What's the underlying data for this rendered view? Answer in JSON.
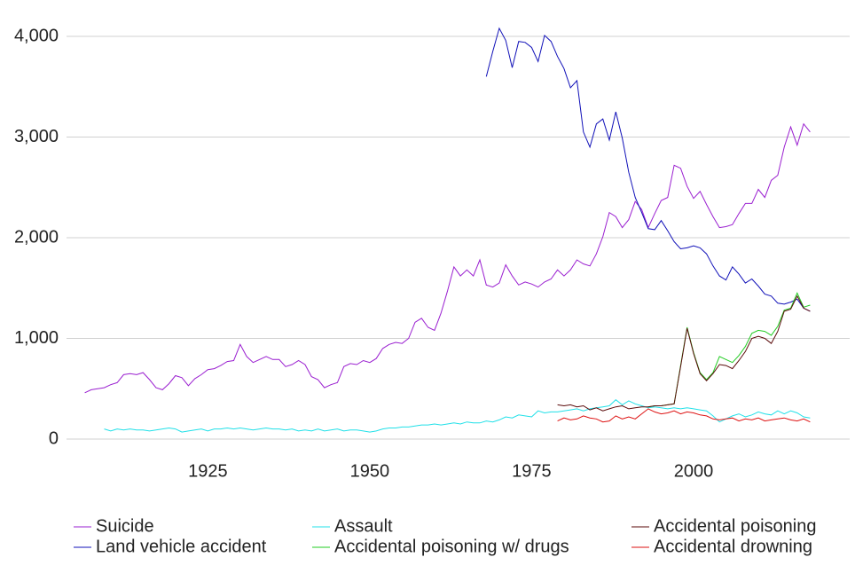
{
  "chart_data": {
    "type": "line",
    "x": [
      1906,
      1907,
      1908,
      1909,
      1910,
      1911,
      1912,
      1913,
      1914,
      1915,
      1916,
      1917,
      1918,
      1919,
      1920,
      1921,
      1922,
      1923,
      1924,
      1925,
      1926,
      1927,
      1928,
      1929,
      1930,
      1931,
      1932,
      1933,
      1934,
      1935,
      1936,
      1937,
      1938,
      1939,
      1940,
      1941,
      1942,
      1943,
      1944,
      1945,
      1946,
      1947,
      1948,
      1949,
      1950,
      1951,
      1952,
      1953,
      1954,
      1955,
      1956,
      1957,
      1958,
      1959,
      1960,
      1961,
      1962,
      1963,
      1964,
      1965,
      1966,
      1967,
      1968,
      1969,
      1970,
      1971,
      1972,
      1973,
      1974,
      1975,
      1976,
      1977,
      1978,
      1979,
      1980,
      1981,
      1982,
      1983,
      1984,
      1985,
      1986,
      1987,
      1988,
      1989,
      1990,
      1991,
      1992,
      1993,
      1994,
      1995,
      1996,
      1997,
      1998,
      1999,
      2000,
      2001,
      2002,
      2003,
      2004,
      2005,
      2006,
      2007,
      2008,
      2009,
      2010,
      2011,
      2012,
      2013,
      2014,
      2015,
      2016,
      2017,
      2018
    ],
    "series": [
      {
        "name": "Suicide",
        "color": "#9a1fd0",
        "values": [
          460,
          490,
          500,
          510,
          540,
          560,
          640,
          650,
          640,
          660,
          590,
          510,
          490,
          550,
          630,
          610,
          530,
          600,
          640,
          690,
          700,
          730,
          770,
          780,
          940,
          820,
          760,
          790,
          820,
          790,
          790,
          720,
          740,
          780,
          740,
          620,
          590,
          510,
          540,
          560,
          720,
          750,
          740,
          780,
          760,
          800,
          900,
          940,
          960,
          950,
          1000,
          1160,
          1200,
          1110,
          1080,
          1250,
          1470,
          1710,
          1620,
          1680,
          1620,
          1780,
          1530,
          1510,
          1550,
          1730,
          1620,
          1530,
          1560,
          1540,
          1510,
          1560,
          1590,
          1680,
          1620,
          1680,
          1780,
          1740,
          1720,
          1840,
          2010,
          2250,
          2210,
          2100,
          2180,
          2360,
          2280,
          2100,
          2240,
          2370,
          2400,
          2720,
          2690,
          2510,
          2390,
          2460,
          2330,
          2210,
          2100,
          2110,
          2130,
          2240,
          2340,
          2340,
          2480,
          2400,
          2570,
          2620,
          2900,
          3100,
          2920,
          3130,
          3050
        ]
      },
      {
        "name": "Land vehicle accident",
        "color": "#1010b8",
        "values": [
          null,
          null,
          null,
          null,
          null,
          null,
          null,
          null,
          null,
          null,
          null,
          null,
          null,
          null,
          null,
          null,
          null,
          null,
          null,
          null,
          null,
          null,
          null,
          null,
          null,
          null,
          null,
          null,
          null,
          null,
          null,
          null,
          null,
          null,
          null,
          null,
          null,
          null,
          null,
          null,
          null,
          null,
          null,
          null,
          null,
          null,
          null,
          null,
          null,
          null,
          null,
          null,
          null,
          null,
          null,
          null,
          null,
          null,
          null,
          null,
          null,
          null,
          3600,
          3850,
          4080,
          3960,
          3690,
          3950,
          3940,
          3890,
          3750,
          4010,
          3950,
          3800,
          3680,
          3490,
          3560,
          3050,
          2900,
          3130,
          3180,
          2970,
          3250,
          2990,
          2650,
          2400,
          2250,
          2090,
          2080,
          2170,
          2070,
          1960,
          1890,
          1900,
          1920,
          1900,
          1840,
          1720,
          1620,
          1580,
          1710,
          1640,
          1550,
          1590,
          1520,
          1440,
          1420,
          1350,
          1340,
          1360,
          1390,
          1300,
          1270
        ]
      },
      {
        "name": "Assault",
        "color": "#20e0e8",
        "values": [
          null,
          null,
          null,
          100,
          80,
          100,
          90,
          100,
          90,
          90,
          80,
          90,
          100,
          110,
          100,
          70,
          80,
          90,
          100,
          80,
          100,
          100,
          110,
          100,
          110,
          100,
          90,
          100,
          110,
          100,
          100,
          90,
          100,
          80,
          90,
          80,
          100,
          80,
          90,
          100,
          80,
          90,
          90,
          80,
          70,
          80,
          100,
          110,
          110,
          120,
          120,
          130,
          140,
          140,
          150,
          140,
          150,
          160,
          150,
          170,
          160,
          160,
          180,
          170,
          190,
          220,
          210,
          240,
          230,
          220,
          280,
          260,
          270,
          270,
          280,
          290,
          300,
          280,
          300,
          310,
          320,
          330,
          390,
          340,
          380,
          350,
          330,
          310,
          320,
          310,
          300,
          310,
          300,
          310,
          300,
          290,
          280,
          230,
          170,
          200,
          230,
          250,
          220,
          240,
          270,
          250,
          240,
          280,
          250,
          280,
          260,
          220,
          210
        ]
      },
      {
        "name": "Accidental poisoning w/ drugs",
        "color": "#22cc22",
        "values": [
          null,
          null,
          null,
          null,
          null,
          null,
          null,
          null,
          null,
          null,
          null,
          null,
          null,
          null,
          null,
          null,
          null,
          null,
          null,
          null,
          null,
          null,
          null,
          null,
          null,
          null,
          null,
          null,
          null,
          null,
          null,
          null,
          null,
          null,
          null,
          null,
          null,
          null,
          null,
          null,
          null,
          null,
          null,
          null,
          null,
          null,
          null,
          null,
          null,
          null,
          null,
          null,
          null,
          null,
          null,
          null,
          null,
          null,
          null,
          null,
          null,
          null,
          null,
          null,
          null,
          null,
          null,
          null,
          null,
          null,
          null,
          null,
          null,
          null,
          null,
          null,
          null,
          null,
          null,
          null,
          null,
          null,
          null,
          null,
          null,
          null,
          null,
          320,
          330,
          330,
          340,
          350,
          730,
          1110,
          860,
          660,
          590,
          660,
          820,
          790,
          760,
          830,
          920,
          1050,
          1080,
          1070,
          1030,
          1120,
          1280,
          1300,
          1450,
          1310,
          1330
        ]
      },
      {
        "name": "Accidental poisoning",
        "color": "#5a0a0a",
        "values": [
          null,
          null,
          null,
          null,
          null,
          null,
          null,
          null,
          null,
          null,
          null,
          null,
          null,
          null,
          null,
          null,
          null,
          null,
          null,
          null,
          null,
          null,
          null,
          null,
          null,
          null,
          null,
          null,
          null,
          null,
          null,
          null,
          null,
          null,
          null,
          null,
          null,
          null,
          null,
          null,
          null,
          null,
          null,
          null,
          null,
          null,
          null,
          null,
          null,
          null,
          null,
          null,
          null,
          null,
          null,
          null,
          null,
          null,
          null,
          null,
          null,
          null,
          null,
          null,
          null,
          null,
          null,
          null,
          null,
          null,
          null,
          null,
          null,
          340,
          330,
          340,
          320,
          330,
          290,
          310,
          280,
          300,
          320,
          330,
          300,
          310,
          320,
          320,
          330,
          330,
          340,
          350,
          720,
          1100,
          850,
          650,
          580,
          650,
          740,
          730,
          700,
          780,
          870,
          1000,
          1020,
          1000,
          950,
          1070,
          1270,
          1290,
          1420,
          1300,
          1270
        ]
      },
      {
        "name": "Accidental drowning",
        "color": "#dd1111",
        "values": [
          null,
          null,
          null,
          null,
          null,
          null,
          null,
          null,
          null,
          null,
          null,
          null,
          null,
          null,
          null,
          null,
          null,
          null,
          null,
          null,
          null,
          null,
          null,
          null,
          null,
          null,
          null,
          null,
          null,
          null,
          null,
          null,
          null,
          null,
          null,
          null,
          null,
          null,
          null,
          null,
          null,
          null,
          null,
          null,
          null,
          null,
          null,
          null,
          null,
          null,
          null,
          null,
          null,
          null,
          null,
          null,
          null,
          null,
          null,
          null,
          null,
          null,
          null,
          null,
          null,
          null,
          null,
          null,
          null,
          null,
          null,
          null,
          null,
          180,
          210,
          190,
          200,
          230,
          210,
          200,
          170,
          180,
          230,
          200,
          220,
          200,
          250,
          300,
          270,
          250,
          260,
          280,
          250,
          270,
          260,
          240,
          230,
          200,
          190,
          200,
          210,
          180,
          200,
          190,
          210,
          180,
          190,
          200,
          210,
          190,
          180,
          200,
          170
        ]
      }
    ],
    "xlim": [
      1904,
      2022
    ],
    "xticks": [
      1925,
      1950,
      1975,
      2000
    ],
    "ylim": [
      0,
      4000
    ],
    "yticks": [
      0,
      {
        "value": 1000,
        "label": "1,000"
      },
      {
        "value": 2000,
        "label": "2,000"
      },
      {
        "value": 3000,
        "label": "3,000"
      },
      {
        "value": 4000,
        "label": "4,000"
      }
    ],
    "grid": true,
    "legend": "bottom"
  }
}
